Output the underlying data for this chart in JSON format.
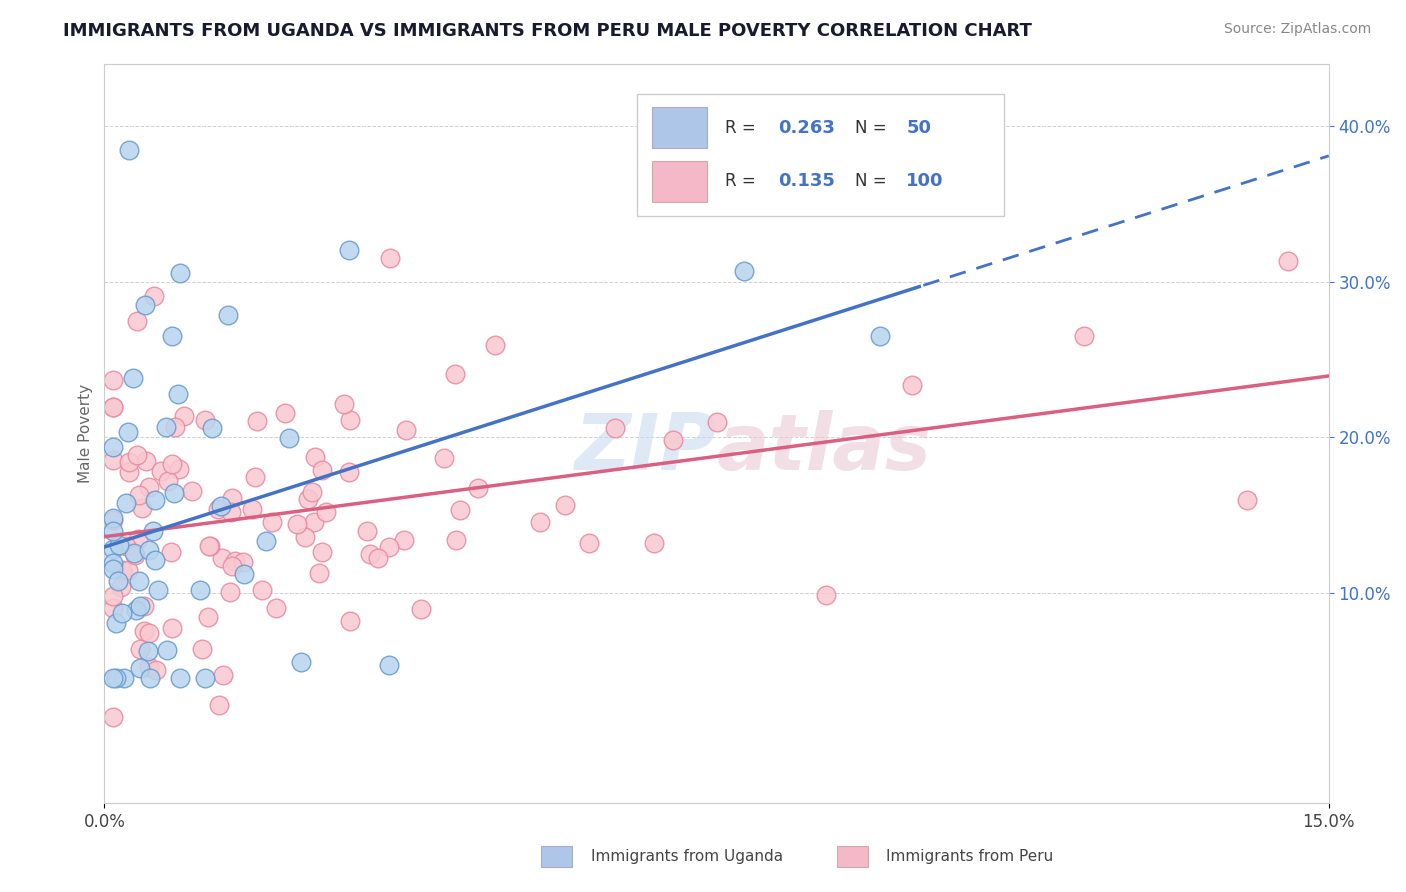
{
  "title": "IMMIGRANTS FROM UGANDA VS IMMIGRANTS FROM PERU MALE POVERTY CORRELATION CHART",
  "source": "Source: ZipAtlas.com",
  "ylabel": "Male Poverty",
  "ytick_labels": [
    "10.0%",
    "20.0%",
    "30.0%",
    "40.0%"
  ],
  "ytick_values": [
    0.1,
    0.2,
    0.3,
    0.4
  ],
  "xlim": [
    0.0,
    0.15
  ],
  "ylim": [
    -0.035,
    0.44
  ],
  "legend_entries": [
    {
      "label": "Immigrants from Uganda",
      "R": "0.263",
      "N": "50",
      "fill_color": "#aec6e8",
      "edge_color": "#7ab3d9"
    },
    {
      "label": "Immigrants from Peru",
      "R": "0.135",
      "N": "100",
      "fill_color": "#f4b8c8",
      "edge_color": "#e890a0"
    }
  ],
  "watermark": "ZIPatlas",
  "uganda_scatter_fill": "#b8d4ee",
  "uganda_scatter_edge": "#6699cc",
  "peru_scatter_fill": "#f8c8d0",
  "peru_scatter_edge": "#e888a0",
  "uganda_line_color": "#4472c4",
  "peru_line_color": "#d96080",
  "background_color": "#ffffff",
  "grid_color": "#cccccc",
  "legend_box_color": "#aec6e8",
  "legend_box_color2": "#f4b8c8",
  "text_dark": "#333333",
  "text_blue": "#4472c4"
}
